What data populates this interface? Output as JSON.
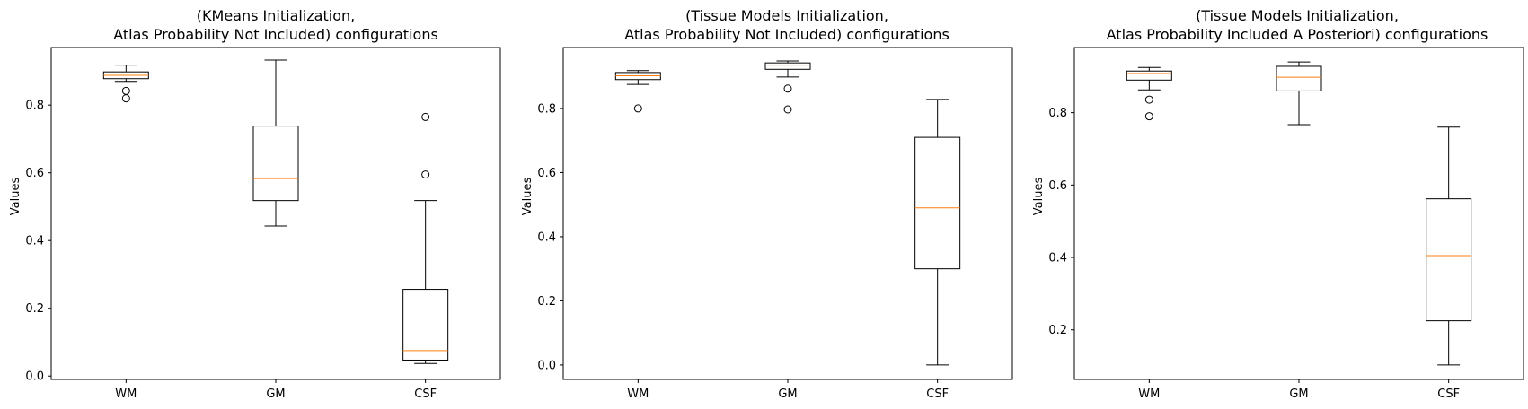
{
  "chart_data": [
    {
      "type": "box",
      "title_lines": [
        "(KMeans Initialization,",
        "Atlas Probability Not Included) configurations"
      ],
      "xlabel": "",
      "ylabel": "Values",
      "categories": [
        "WM",
        "GM",
        "CSF"
      ],
      "ylim": [
        -0.01,
        0.97
      ],
      "yticks": [
        0.0,
        0.2,
        0.4,
        0.6,
        0.8
      ],
      "ytick_labels": [
        "0.0",
        "0.2",
        "0.4",
        "0.6",
        "0.8"
      ],
      "boxes": [
        {
          "whislo": 0.87,
          "q1": 0.878,
          "median": 0.888,
          "q3": 0.898,
          "whishi": 0.918,
          "fliers": [
            0.842,
            0.82
          ]
        },
        {
          "whislo": 0.443,
          "q1": 0.518,
          "median": 0.583,
          "q3": 0.738,
          "whishi": 0.933,
          "fliers": []
        },
        {
          "whislo": 0.037,
          "q1": 0.047,
          "median": 0.075,
          "q3": 0.256,
          "whishi": 0.518,
          "fliers": [
            0.765,
            0.595
          ]
        }
      ]
    },
    {
      "type": "box",
      "title_lines": [
        "(Tissue Models Initialization,",
        "Atlas Probability Not Included) configurations"
      ],
      "xlabel": "",
      "ylabel": "Values",
      "categories": [
        "WM",
        "GM",
        "CSF"
      ],
      "ylim": [
        -0.045,
        0.99
      ],
      "yticks": [
        0.0,
        0.2,
        0.4,
        0.6,
        0.8
      ],
      "ytick_labels": [
        "0.0",
        "0.2",
        "0.4",
        "0.6",
        "0.8"
      ],
      "boxes": [
        {
          "whislo": 0.875,
          "q1": 0.89,
          "median": 0.902,
          "q3": 0.912,
          "whishi": 0.918,
          "fliers": [
            0.8
          ]
        },
        {
          "whislo": 0.898,
          "q1": 0.922,
          "median": 0.935,
          "q3": 0.942,
          "whishi": 0.948,
          "fliers": [
            0.862,
            0.797
          ]
        },
        {
          "whislo": 0.0,
          "q1": 0.3,
          "median": 0.49,
          "q3": 0.71,
          "whishi": 0.828,
          "fliers": []
        }
      ]
    },
    {
      "type": "box",
      "title_lines": [
        "(Tissue Models Initialization,",
        "Atlas Probability Included A Posteriori) configurations"
      ],
      "xlabel": "",
      "ylabel": "Values",
      "categories": [
        "WM",
        "GM",
        "CSF"
      ],
      "ylim": [
        0.063,
        0.98
      ],
      "yticks": [
        0.2,
        0.4,
        0.6,
        0.8
      ],
      "ytick_labels": [
        "0.2",
        "0.4",
        "0.6",
        "0.8"
      ],
      "boxes": [
        {
          "whislo": 0.863,
          "q1": 0.89,
          "median": 0.908,
          "q3": 0.915,
          "whishi": 0.925,
          "fliers": [
            0.836,
            0.79
          ]
        },
        {
          "whislo": 0.767,
          "q1": 0.86,
          "median": 0.898,
          "q3": 0.928,
          "whishi": 0.94,
          "fliers": []
        },
        {
          "whislo": 0.103,
          "q1": 0.225,
          "median": 0.405,
          "q3": 0.562,
          "whishi": 0.76,
          "fliers": []
        }
      ]
    }
  ]
}
